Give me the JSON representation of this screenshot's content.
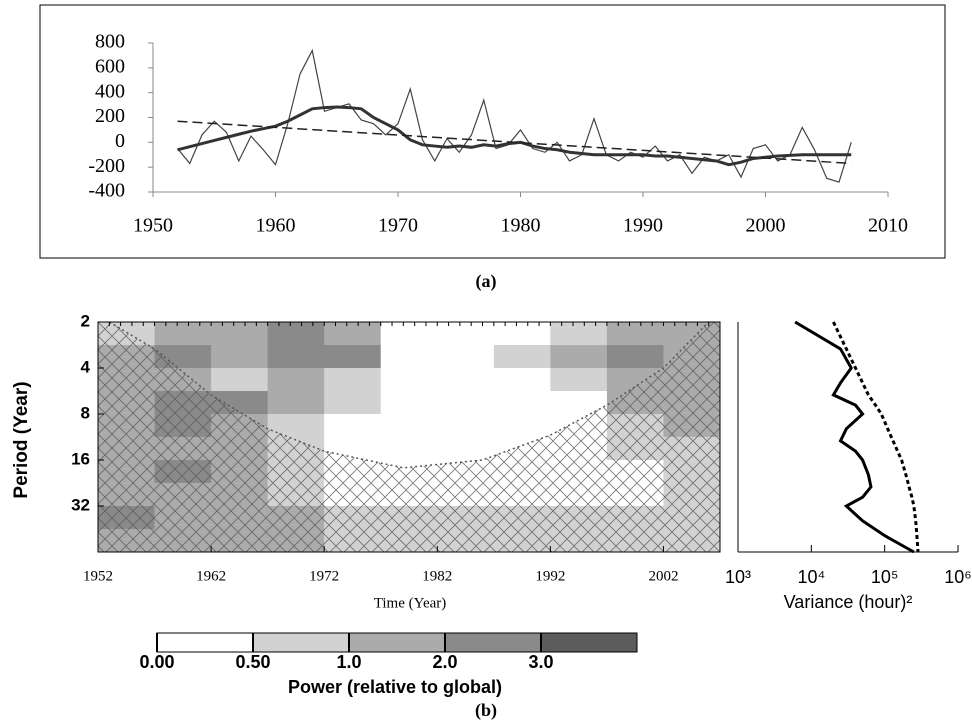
{
  "chart_data": [
    {
      "type": "line",
      "caption": "(a)",
      "x": [
        1952,
        1953,
        1954,
        1955,
        1956,
        1957,
        1958,
        1959,
        1960,
        1961,
        1962,
        1963,
        1964,
        1965,
        1966,
        1967,
        1968,
        1969,
        1970,
        1971,
        1972,
        1973,
        1974,
        1975,
        1976,
        1977,
        1978,
        1979,
        1980,
        1981,
        1982,
        1983,
        1984,
        1985,
        1986,
        1987,
        1988,
        1989,
        1990,
        1991,
        1992,
        1993,
        1994,
        1995,
        1996,
        1997,
        1998,
        1999,
        2000,
        2001,
        2002,
        2003,
        2004,
        2005,
        2006,
        2007
      ],
      "xlim": [
        1950,
        2010
      ],
      "xticks": [
        1950,
        1960,
        1970,
        1980,
        1990,
        2000,
        2010
      ],
      "ylim": [
        -400,
        800
      ],
      "yticks": [
        -400,
        -200,
        0,
        200,
        400,
        600,
        800
      ],
      "series": [
        {
          "color": "#444444",
          "width": 1.2,
          "dash": false,
          "values": [
            -50,
            -170,
            60,
            170,
            80,
            -150,
            50,
            -60,
            -180,
            150,
            550,
            740,
            250,
            280,
            310,
            180,
            150,
            60,
            150,
            430,
            20,
            -150,
            30,
            -80,
            60,
            340,
            -50,
            -20,
            100,
            -50,
            -80,
            0,
            -150,
            -100,
            190,
            -100,
            -150,
            -80,
            -120,
            -30,
            -150,
            -100,
            -250,
            -120,
            -150,
            -100,
            -280,
            -50,
            -20,
            -150,
            -100,
            120,
            -60,
            -290,
            -320,
            0
          ]
        },
        {
          "color": "#333333",
          "width": 3,
          "dash": false,
          "values": [
            -60,
            -35,
            -10,
            15,
            40,
            65,
            90,
            110,
            130,
            170,
            220,
            270,
            280,
            285,
            280,
            270,
            200,
            150,
            100,
            20,
            -20,
            -30,
            -40,
            -30,
            -40,
            -20,
            -30,
            -10,
            0,
            -30,
            -50,
            -60,
            -80,
            -90,
            -100,
            -100,
            -100,
            -100,
            -100,
            -110,
            -110,
            -120,
            -130,
            -140,
            -150,
            -180,
            -160,
            -130,
            -120,
            -110,
            -105,
            -100,
            -100,
            -100,
            -100,
            -100
          ]
        },
        {
          "color": "#222222",
          "width": 1.5,
          "dash": true,
          "x": [
            1952,
            2007
          ],
          "values": [
            170,
            -170
          ]
        }
      ]
    },
    {
      "type": "contour",
      "caption": "(b)",
      "xlabel": "Time (Year)",
      "ylabel": "Period (Year)",
      "colorbar_label": "Power (relative to global)",
      "xlim": [
        1952,
        2007
      ],
      "xticks": [
        1952,
        1962,
        1972,
        1982,
        1992,
        2002
      ],
      "ylim": [
        2,
        64
      ],
      "yticks": [
        2,
        4,
        8,
        16,
        32
      ],
      "log_y": true,
      "xbins": [
        1952,
        1957,
        1962,
        1967,
        1972,
        1977,
        1982,
        1987,
        1992,
        1997,
        2002,
        2007
      ],
      "ybins": [
        2,
        2.83,
        4,
        5.66,
        8,
        11.3,
        16,
        22.6,
        32,
        45.3,
        64
      ],
      "z": [
        [
          0.8,
          1.2,
          1.0,
          2.5,
          1.5,
          0.3,
          0.2,
          0.4,
          0.8,
          1.2,
          1.0
        ],
        [
          1.0,
          2.5,
          1.5,
          2.0,
          2.5,
          0.3,
          0.2,
          0.5,
          1.0,
          2.5,
          1.2
        ],
        [
          1.2,
          1.5,
          0.8,
          1.0,
          0.6,
          0.3,
          0.2,
          0.3,
          0.6,
          1.5,
          1.8
        ],
        [
          1.5,
          2.5,
          2.0,
          1.2,
          0.8,
          0.4,
          0.3,
          0.2,
          0.4,
          1.0,
          1.2
        ],
        [
          1.8,
          2.0,
          1.5,
          0.8,
          0.4,
          0.2,
          0.2,
          0.2,
          0.3,
          0.8,
          1.0
        ],
        [
          1.5,
          1.8,
          1.2,
          0.6,
          0.3,
          0.2,
          0.1,
          0.2,
          0.3,
          0.6,
          0.8
        ],
        [
          1.8,
          2.0,
          1.5,
          0.8,
          0.4,
          0.2,
          0.1,
          0.1,
          0.2,
          0.4,
          0.6
        ],
        [
          1.5,
          1.5,
          1.2,
          0.7,
          0.4,
          0.2,
          0.2,
          0.1,
          0.2,
          0.3,
          0.5
        ],
        [
          2.0,
          1.8,
          1.5,
          1.2,
          0.8,
          0.6,
          0.5,
          0.5,
          0.6,
          0.7,
          0.8
        ],
        [
          1.5,
          1.5,
          1.2,
          1.0,
          0.8,
          0.7,
          0.7,
          0.6,
          0.6,
          0.7,
          0.8
        ]
      ],
      "levels": [
        {
          "value": 0,
          "label": "0.00"
        },
        {
          "value": 0.5,
          "label": "0.50"
        },
        {
          "value": 1,
          "label": "1.0"
        },
        {
          "value": 2,
          "label": "2.0"
        },
        {
          "value": 3,
          "label": "3.0"
        }
      ],
      "colors": [
        "#ffffff",
        "#d2d2d2",
        "#ababab",
        "#8a8a8a",
        "#5c5c5c"
      ],
      "coi": {
        "x": [
          1953,
          1957,
          1962,
          1967,
          1972,
          1979,
          1986,
          1992,
          1997,
          2002,
          2006
        ],
        "y": [
          2,
          3,
          6,
          10,
          14,
          18,
          16,
          11,
          7,
          4,
          2
        ]
      }
    },
    {
      "type": "spectrum",
      "xlabel": "Variance (hour)²",
      "log_x": true,
      "xlim": [
        1000,
        1000000
      ],
      "xticks": [
        {
          "value": 1000,
          "label": "10³"
        },
        {
          "value": 10000,
          "label": "10⁴"
        },
        {
          "value": 100000,
          "label": "10⁵"
        },
        {
          "value": 1000000,
          "label": "10⁶"
        }
      ],
      "ylim": [
        2,
        64
      ],
      "log_y": true,
      "y": [
        2,
        3,
        4,
        5,
        6,
        7,
        8,
        10,
        12,
        14,
        16,
        20,
        24,
        28,
        32,
        40,
        50,
        64
      ],
      "series": [
        {
          "color": "#000000",
          "dash": false,
          "values": [
            6000,
            25000,
            35000,
            25000,
            20000,
            40000,
            50000,
            30000,
            25000,
            40000,
            50000,
            60000,
            65000,
            50000,
            30000,
            50000,
            100000,
            250000
          ]
        },
        {
          "color": "#000000",
          "dash": true,
          "values": [
            20000,
            30000,
            40000,
            50000,
            60000,
            75000,
            90000,
            110000,
            130000,
            150000,
            170000,
            195000,
            215000,
            235000,
            250000,
            265000,
            275000,
            285000
          ]
        }
      ]
    }
  ]
}
